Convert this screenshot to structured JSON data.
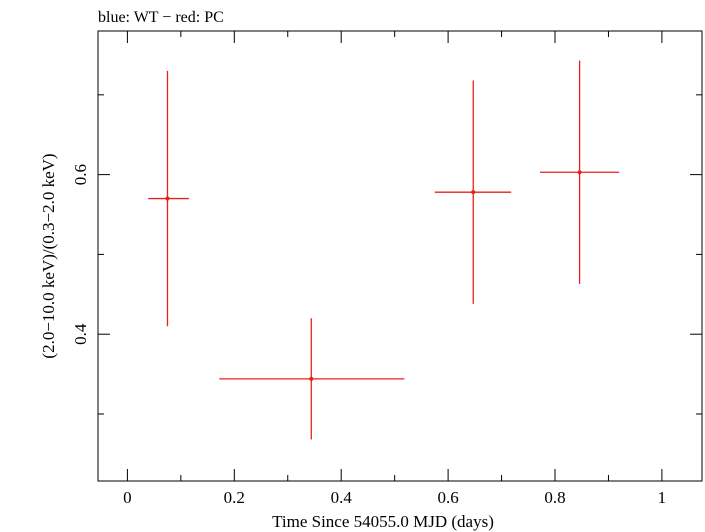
{
  "chart_data": {
    "type": "scatter",
    "title": "blue: WT − red: PC",
    "xlabel": "Time Since 54055.0 MJD (days)",
    "ylabel": "(2.0−10.0 keV)/(0.3−2.0 keV)",
    "xlim": [
      -0.055,
      1.075
    ],
    "ylim": [
      0.216,
      0.78
    ],
    "x_ticks": [
      0,
      0.2,
      0.4,
      0.6,
      0.8,
      1
    ],
    "x_tick_labels": [
      "0",
      "0.2",
      "0.4",
      "0.6",
      "0.8",
      "1"
    ],
    "y_ticks": [
      0.4,
      0.6
    ],
    "y_tick_labels": [
      "0.4",
      "0.6"
    ],
    "x_minor_ticks": [
      0.1,
      0.3,
      0.5,
      0.7,
      0.9
    ],
    "y_minor_ticks": [
      0.3,
      0.5,
      0.7
    ],
    "grid": false,
    "series": [
      {
        "name": "PC",
        "color": "#e8201c",
        "points": [
          {
            "x": 0.075,
            "xlo": 0.039,
            "xhi": 0.115,
            "y": 0.57,
            "ylo": 0.41,
            "yhi": 0.73
          },
          {
            "x": 0.344,
            "xlo": 0.172,
            "xhi": 0.518,
            "y": 0.344,
            "ylo": 0.268,
            "yhi": 0.42
          },
          {
            "x": 0.647,
            "xlo": 0.575,
            "xhi": 0.718,
            "y": 0.578,
            "ylo": 0.438,
            "yhi": 0.718
          },
          {
            "x": 0.846,
            "xlo": 0.772,
            "xhi": 0.92,
            "y": 0.603,
            "ylo": 0.463,
            "yhi": 0.743
          }
        ]
      }
    ]
  }
}
